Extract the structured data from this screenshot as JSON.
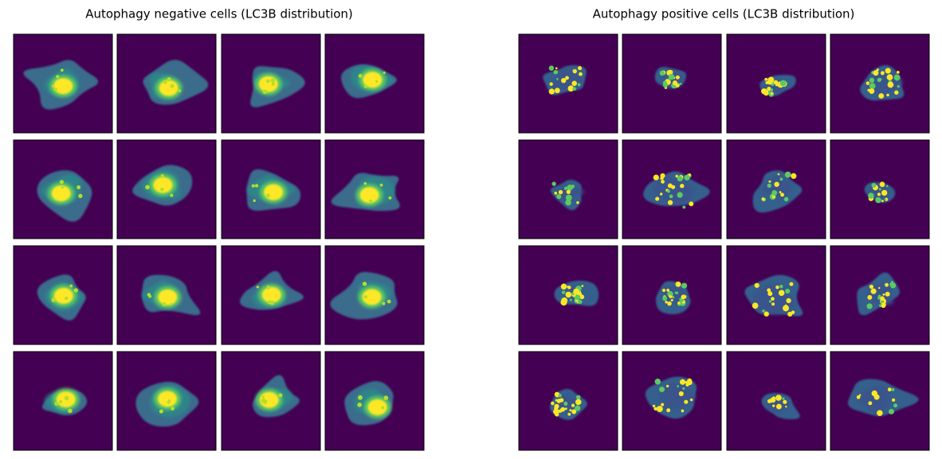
{
  "panels": [
    {
      "title": "Autophagy negative cells (LC3B distribution)"
    },
    {
      "title": "Autophagy positive cells (LC3B distribution)"
    }
  ]
}
